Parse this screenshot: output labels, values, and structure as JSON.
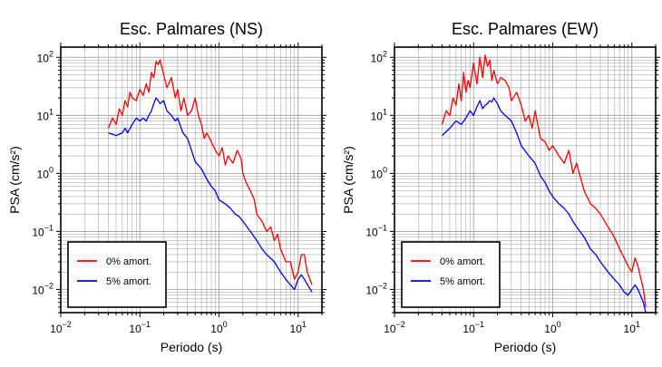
{
  "chart_data": [
    {
      "type": "line",
      "title": "Esc. Palmares (NS)",
      "xlabel": "Periodo (s)",
      "ylabel": "PSA (cm/s²)",
      "xscale": "log",
      "yscale": "log",
      "xlim": [
        0.01,
        20
      ],
      "ylim": [
        0.004,
        150
      ],
      "xticks": [
        0.01,
        0.1,
        1,
        10
      ],
      "yticks": [
        0.01,
        0.1,
        1,
        10,
        100
      ],
      "grid": true,
      "legend_position": "bottom-left",
      "series": [
        {
          "name": "0% amort.",
          "color": "#ff0000",
          "x": [
            0.04,
            0.045,
            0.05,
            0.055,
            0.06,
            0.065,
            0.07,
            0.075,
            0.08,
            0.09,
            0.1,
            0.11,
            0.12,
            0.13,
            0.14,
            0.15,
            0.16,
            0.17,
            0.18,
            0.2,
            0.22,
            0.25,
            0.28,
            0.3,
            0.33,
            0.36,
            0.4,
            0.45,
            0.5,
            0.55,
            0.6,
            0.65,
            0.7,
            0.8,
            0.9,
            1.0,
            1.1,
            1.2,
            1.3,
            1.5,
            1.7,
            1.9,
            2.0,
            2.2,
            2.5,
            2.8,
            3.0,
            3.5,
            4.0,
            4.5,
            5.0,
            5.5,
            6.0,
            7.0,
            8.0,
            9.0,
            10.0,
            11.0,
            12.0,
            13.0,
            15.0
          ],
          "y": [
            6.0,
            9.0,
            7.0,
            13.0,
            10.0,
            18.0,
            14.0,
            25.0,
            20.0,
            18.0,
            28.0,
            22.0,
            35.0,
            25.0,
            55.0,
            45.0,
            85.0,
            75.0,
            90.0,
            50.0,
            30.0,
            45.0,
            20.0,
            28.0,
            12.0,
            20.0,
            10.0,
            12.0,
            20.0,
            10.0,
            7.0,
            4.0,
            5.0,
            3.5,
            2.5,
            2.0,
            2.8,
            1.4,
            2.0,
            1.5,
            2.5,
            1.8,
            1.0,
            0.7,
            0.5,
            0.35,
            0.2,
            0.15,
            0.1,
            0.12,
            0.07,
            0.09,
            0.05,
            0.03,
            0.03,
            0.015,
            0.02,
            0.04,
            0.04,
            0.02,
            0.012
          ]
        },
        {
          "name": "5% amort.",
          "color": "#0000ff",
          "x": [
            0.04,
            0.05,
            0.06,
            0.065,
            0.07,
            0.08,
            0.09,
            0.1,
            0.11,
            0.12,
            0.13,
            0.14,
            0.15,
            0.16,
            0.17,
            0.18,
            0.2,
            0.22,
            0.25,
            0.28,
            0.3,
            0.35,
            0.4,
            0.45,
            0.5,
            0.6,
            0.7,
            0.8,
            0.9,
            1.0,
            1.2,
            1.4,
            1.6,
            1.8,
            2.0,
            2.5,
            3.0,
            3.5,
            4.0,
            5.0,
            6.0,
            7.0,
            8.0,
            9.0,
            10.0,
            11.0,
            12.0,
            15.0
          ],
          "y": [
            5.0,
            4.5,
            5.0,
            6.0,
            5.0,
            7.0,
            9.0,
            8.0,
            9.0,
            8.0,
            10.0,
            12.0,
            16.0,
            20.0,
            18.0,
            16.0,
            18.0,
            12.0,
            10.0,
            8.0,
            9.0,
            5.0,
            4.0,
            2.5,
            1.6,
            1.2,
            0.8,
            0.6,
            0.5,
            0.35,
            0.3,
            0.25,
            0.2,
            0.18,
            0.15,
            0.1,
            0.07,
            0.05,
            0.04,
            0.03,
            0.02,
            0.015,
            0.012,
            0.01,
            0.015,
            0.018,
            0.015,
            0.009
          ]
        }
      ]
    },
    {
      "type": "line",
      "title": "Esc. Palmares (EW)",
      "xlabel": "Periodo (s)",
      "ylabel": "PSA (cm/s²)",
      "xscale": "log",
      "yscale": "log",
      "xlim": [
        0.01,
        20
      ],
      "ylim": [
        0.004,
        150
      ],
      "xticks": [
        0.01,
        0.1,
        1,
        10
      ],
      "yticks": [
        0.01,
        0.1,
        1,
        10,
        100
      ],
      "grid": true,
      "legend_position": "bottom-left",
      "series": [
        {
          "name": "0% amort.",
          "color": "#ff0000",
          "x": [
            0.04,
            0.045,
            0.05,
            0.055,
            0.06,
            0.065,
            0.07,
            0.075,
            0.08,
            0.085,
            0.09,
            0.1,
            0.11,
            0.12,
            0.13,
            0.14,
            0.15,
            0.16,
            0.17,
            0.18,
            0.2,
            0.22,
            0.25,
            0.28,
            0.3,
            0.35,
            0.4,
            0.45,
            0.5,
            0.55,
            0.6,
            0.7,
            0.8,
            0.9,
            1.0,
            1.2,
            1.4,
            1.6,
            1.8,
            2.0,
            2.5,
            3.0,
            3.5,
            4.0,
            5.0,
            6.0,
            7.0,
            8.0,
            9.0,
            10.0,
            11.0,
            12.0,
            14.0,
            15.0
          ],
          "y": [
            7.0,
            12.0,
            10.0,
            20.0,
            15.0,
            35.0,
            18.0,
            55.0,
            25.0,
            40.0,
            30.0,
            80.0,
            35.0,
            100.0,
            45.0,
            110.0,
            70.0,
            90.0,
            40.0,
            60.0,
            35.0,
            45.0,
            40.0,
            30.0,
            18.0,
            25.0,
            15.0,
            8.0,
            10.0,
            6.0,
            12.0,
            4.0,
            3.5,
            2.5,
            3.0,
            2.0,
            1.5,
            2.5,
            1.0,
            1.5,
            0.5,
            0.3,
            0.25,
            0.2,
            0.12,
            0.08,
            0.05,
            0.035,
            0.025,
            0.02,
            0.035,
            0.025,
            0.01,
            0.005
          ]
        },
        {
          "name": "5% amort.",
          "color": "#0000ff",
          "x": [
            0.04,
            0.05,
            0.06,
            0.07,
            0.08,
            0.09,
            0.1,
            0.11,
            0.12,
            0.13,
            0.14,
            0.15,
            0.16,
            0.17,
            0.18,
            0.2,
            0.22,
            0.25,
            0.3,
            0.35,
            0.4,
            0.5,
            0.6,
            0.7,
            0.8,
            0.9,
            1.0,
            1.2,
            1.4,
            1.6,
            1.8,
            2.0,
            2.5,
            3.0,
            3.5,
            4.0,
            5.0,
            6.0,
            7.0,
            8.0,
            9.0,
            10.0,
            11.0,
            12.0,
            14.0,
            15.0
          ],
          "y": [
            4.5,
            6.0,
            8.0,
            7.0,
            9.0,
            12.0,
            10.0,
            14.0,
            18.0,
            13.0,
            15.0,
            16.0,
            18.0,
            17.0,
            20.0,
            16.0,
            12.0,
            10.0,
            8.0,
            5.0,
            3.0,
            2.0,
            1.5,
            0.9,
            0.7,
            0.5,
            0.4,
            0.3,
            0.25,
            0.2,
            0.15,
            0.12,
            0.08,
            0.05,
            0.04,
            0.03,
            0.02,
            0.015,
            0.012,
            0.009,
            0.008,
            0.01,
            0.012,
            0.01,
            0.006,
            0.004
          ]
        }
      ]
    }
  ]
}
